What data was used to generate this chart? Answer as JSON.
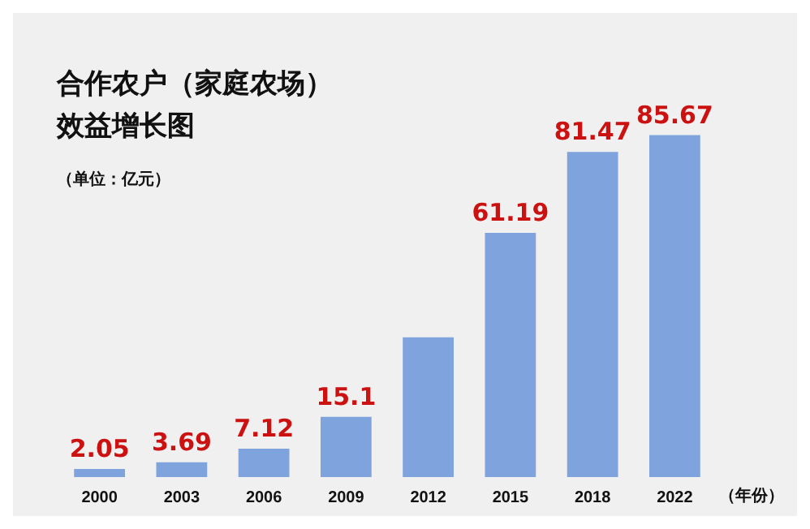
{
  "chart_data": {
    "type": "bar",
    "title": "合作农户（家庭农场）效益增长图",
    "subtitle": "（单位：亿元）",
    "xlabel": "（年份）",
    "categories": [
      "2000",
      "2003",
      "2006",
      "2009",
      "2012",
      "2015",
      "2018",
      "2022"
    ],
    "values": [
      2.05,
      3.69,
      7.12,
      15.1,
      35,
      61.19,
      81.47,
      85.67
    ],
    "value_labels": [
      "2.05",
      "3.69",
      "7.12",
      "15.1",
      null,
      "61.19",
      "81.47",
      "85.67"
    ],
    "color": "#7fa3dc",
    "grid": false
  }
}
